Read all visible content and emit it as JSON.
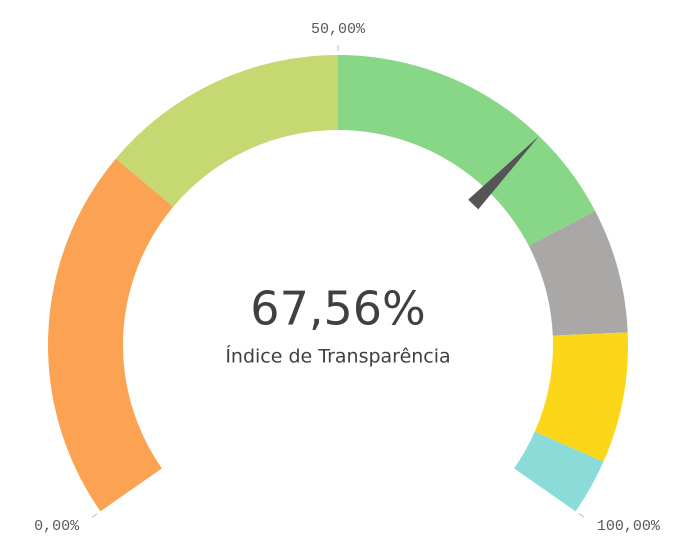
{
  "chart_data": {
    "type": "gauge",
    "value": 67.56,
    "value_label": "67,56%",
    "label": "Índice de Transparência",
    "range": [
      0,
      100
    ],
    "ticks": [
      {
        "value": 0,
        "label": "0,00%"
      },
      {
        "value": 50,
        "label": "50,00%"
      },
      {
        "value": 100,
        "label": "100,00%"
      }
    ],
    "bands": [
      {
        "from": 0,
        "to": 30,
        "color": "#fba352"
      },
      {
        "from": 30,
        "to": 50,
        "color": "#c6d872"
      },
      {
        "from": 50,
        "to": 75,
        "color": "#87d787"
      },
      {
        "from": 75,
        "to": 85,
        "color": "#a9a8a7"
      },
      {
        "from": 85,
        "to": 95.5,
        "color": "#fbd619"
      },
      {
        "from": 95.5,
        "to": 100,
        "color": "#8bdbd8"
      }
    ],
    "needle_color": "#555555"
  }
}
